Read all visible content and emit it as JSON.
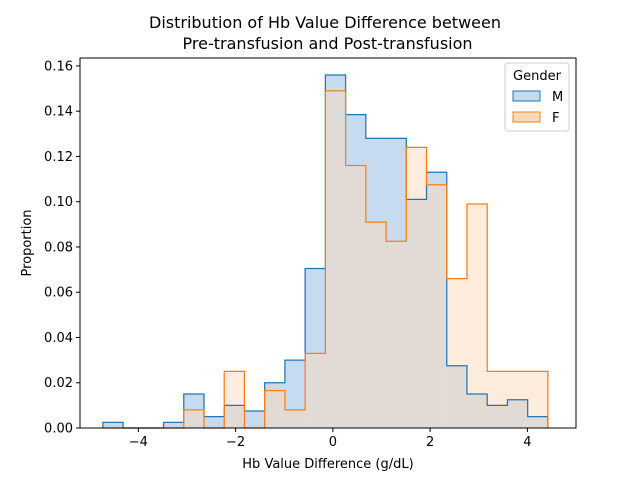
{
  "chart_data": {
    "type": "histogram",
    "title_line1": "Distribution of Hb Value Difference between",
    "title_line2": " Pre-transfusion and Post-transfusion",
    "xlabel": "Hb Value Difference (g/dL)",
    "ylabel": "Proportion",
    "xlim": [
      -5.2,
      5.0
    ],
    "ylim": [
      0,
      0.1635
    ],
    "xticks": [
      -4,
      -2,
      0,
      2,
      4
    ],
    "xtick_labels": [
      "−4",
      "−2",
      "0",
      "2",
      "4"
    ],
    "yticks": [
      0.0,
      0.02,
      0.04,
      0.06,
      0.08,
      0.1,
      0.12,
      0.14,
      0.16
    ],
    "ytick_labels": [
      "0.00",
      "0.02",
      "0.04",
      "0.06",
      "0.08",
      "0.10",
      "0.12",
      "0.14",
      "0.16"
    ],
    "grid": false,
    "legend": {
      "title": "Gender",
      "placement": "top-right"
    },
    "bin_edges": [
      -4.73,
      -4.314,
      -3.898,
      -3.482,
      -3.066,
      -2.65,
      -2.234,
      -1.818,
      -1.402,
      -0.986,
      -0.57,
      -0.154,
      0.262,
      0.678,
      1.094,
      1.51,
      1.926,
      2.342,
      2.758,
      3.174,
      3.59,
      4.006,
      4.422
    ],
    "series": [
      {
        "name": "M",
        "color": "#1f77b4",
        "fill": "#c6dbef",
        "values": [
          0.0025,
          0.0,
          0.0,
          0.0025,
          0.015,
          0.005,
          0.01,
          0.0075,
          0.02,
          0.03,
          0.0705,
          0.156,
          0.1385,
          0.128,
          0.128,
          0.101,
          0.113,
          0.0275,
          0.015,
          0.01,
          0.0125,
          0.005
        ]
      },
      {
        "name": "F",
        "color": "#ff7f0e",
        "fill": "#fdd9b9",
        "values": [
          0.0,
          0.0,
          0.0,
          0.0,
          0.008,
          0.0,
          0.025,
          0.0,
          0.0165,
          0.008,
          0.033,
          0.149,
          0.116,
          0.091,
          0.0825,
          0.124,
          0.1075,
          0.066,
          0.099,
          0.025,
          0.025,
          0.025
        ]
      }
    ]
  }
}
